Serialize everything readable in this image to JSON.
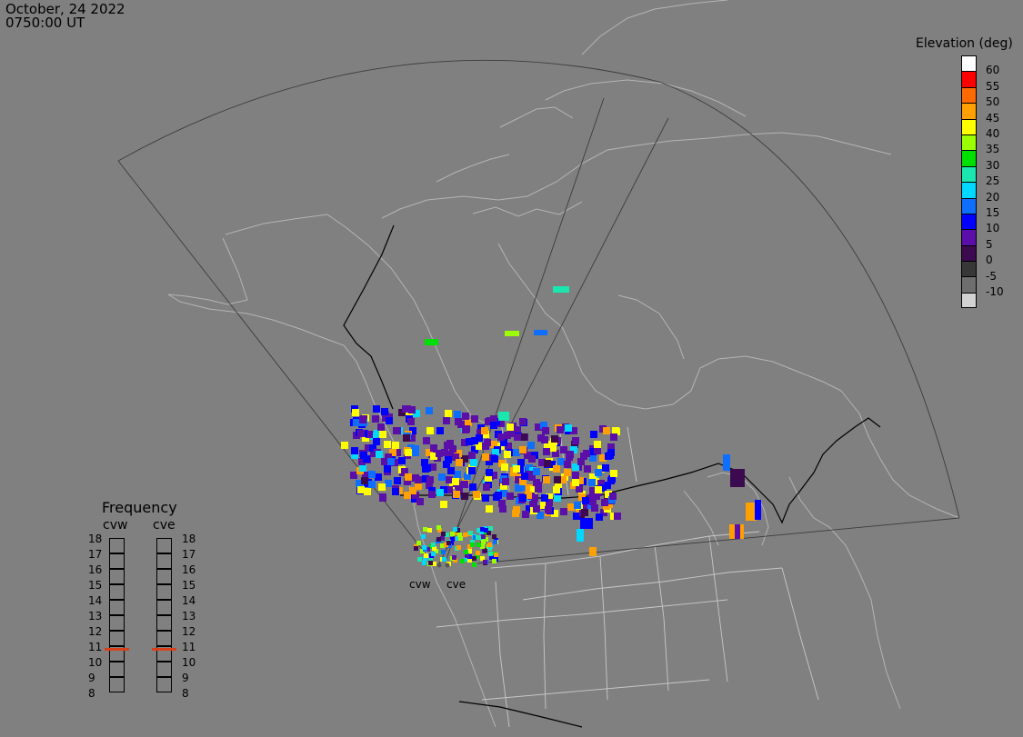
{
  "header": {
    "date": "October, 24 2022",
    "time": "0750:00 UT"
  },
  "colorbar": {
    "title": "Elevation (deg)",
    "levels": [
      {
        "label": "60",
        "color": "#ffffff"
      },
      {
        "label": "55",
        "color": "#ff0000"
      },
      {
        "label": "50",
        "color": "#ff6a00"
      },
      {
        "label": "45",
        "color": "#ff9f00"
      },
      {
        "label": "40",
        "color": "#ffff00"
      },
      {
        "label": "35",
        "color": "#9cff00"
      },
      {
        "label": "30",
        "color": "#00e000"
      },
      {
        "label": "25",
        "color": "#1ae6b0"
      },
      {
        "label": "20",
        "color": "#00d8ff"
      },
      {
        "label": "15",
        "color": "#0d6eff"
      },
      {
        "label": "10",
        "color": "#0000ff"
      },
      {
        "label": "5",
        "color": "#5a0fa8"
      },
      {
        "label": "0",
        "color": "#3c0a4e"
      },
      {
        "label": "-5",
        "color": "#373737"
      },
      {
        "label": "-10",
        "color": "#6e6e6e"
      },
      {
        "label": "",
        "color": "#d2d2d2"
      }
    ]
  },
  "radars": [
    {
      "name": "cvw"
    },
    {
      "name": "cve"
    }
  ],
  "frequency": {
    "title": "Frequency",
    "ticks": [
      "18",
      "17",
      "16",
      "15",
      "14",
      "13",
      "12",
      "11",
      "10",
      "9",
      "8"
    ],
    "cvw_mhz": 10.8,
    "cve_mhz": 10.8
  }
}
